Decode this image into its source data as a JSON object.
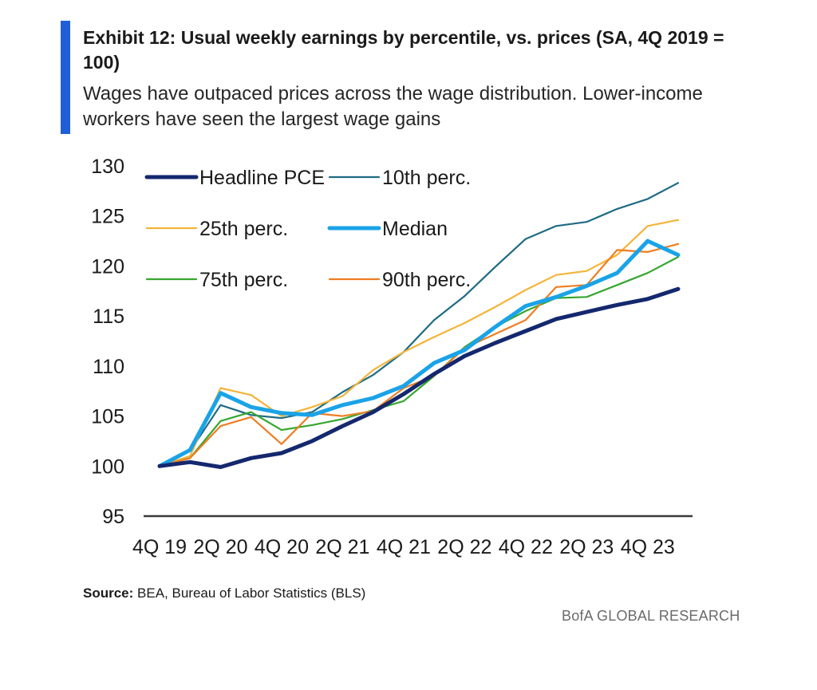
{
  "header": {
    "title": "Exhibit 12: Usual weekly earnings by percentile, vs. prices (SA, 4Q 2019 = 100)",
    "subtitle": "Wages have outpaced prices across the wage distribution. Lower-income workers have seen the largest wage gains"
  },
  "footer": {
    "source_label": "Source:",
    "source_text": "BEA, Bureau of Labor Statistics (BLS)",
    "brand": "BofA GLOBAL RESEARCH"
  },
  "colors": {
    "accent": "#1f5ed6"
  },
  "chart_data": {
    "type": "line",
    "ylim": [
      95,
      130
    ],
    "yticks": [
      95,
      100,
      105,
      110,
      115,
      120,
      125,
      130
    ],
    "x_tick_labels": [
      "4Q 19",
      "2Q 20",
      "4Q 20",
      "2Q 21",
      "4Q 21",
      "2Q 22",
      "4Q 22",
      "2Q 23",
      "4Q 23"
    ],
    "x": [
      "4Q 19",
      "1Q 20",
      "2Q 20",
      "3Q 20",
      "4Q 20",
      "1Q 21",
      "2Q 21",
      "3Q 21",
      "4Q 21",
      "1Q 22",
      "2Q 22",
      "3Q 22",
      "4Q 22",
      "1Q 23",
      "2Q 23",
      "3Q 23",
      "4Q 23",
      "1Q 24"
    ],
    "grid": false,
    "legend_position": "top-left",
    "series": [
      {
        "name": "Headline PCE",
        "color": "#14286e",
        "width": 5,
        "values": [
          100.0,
          100.4,
          99.9,
          100.8,
          101.3,
          102.5,
          104.0,
          105.4,
          107.2,
          109.2,
          111.0,
          112.3,
          113.5,
          114.7,
          115.4,
          116.1,
          116.7,
          117.7
        ]
      },
      {
        "name": "10th perc.",
        "color": "#1e6b84",
        "width": 2.2,
        "values": [
          100.0,
          101.5,
          106.1,
          105.1,
          104.8,
          105.4,
          107.4,
          109.1,
          111.4,
          114.6,
          117.0,
          119.9,
          122.7,
          124.0,
          124.4,
          125.7,
          126.7,
          128.3
        ]
      },
      {
        "name": "25th perc.",
        "color": "#f4b43a",
        "width": 2.2,
        "values": [
          100.0,
          101.0,
          107.8,
          107.1,
          105.0,
          105.9,
          107.0,
          109.6,
          111.4,
          112.9,
          114.3,
          115.9,
          117.6,
          119.1,
          119.5,
          121.1,
          124.0,
          124.6
        ]
      },
      {
        "name": "Median",
        "color": "#1aa3e8",
        "width": 5,
        "values": [
          100.0,
          101.6,
          107.3,
          105.9,
          105.3,
          105.1,
          106.1,
          106.8,
          108.0,
          110.3,
          111.6,
          113.9,
          116.0,
          116.9,
          118.0,
          119.3,
          122.5,
          121.1
        ]
      },
      {
        "name": "75th perc.",
        "color": "#36a72f",
        "width": 2.2,
        "values": [
          100.0,
          100.8,
          104.5,
          105.4,
          103.6,
          104.1,
          104.7,
          105.6,
          106.5,
          109.0,
          111.9,
          113.9,
          115.5,
          116.8,
          116.9,
          118.1,
          119.3,
          120.9
        ]
      },
      {
        "name": "90th perc.",
        "color": "#ef7d22",
        "width": 2.2,
        "values": [
          100.0,
          100.8,
          104.0,
          104.9,
          102.2,
          105.3,
          105.0,
          105.5,
          107.8,
          109.0,
          111.8,
          113.2,
          114.6,
          117.9,
          118.1,
          121.6,
          121.4,
          122.2
        ]
      }
    ]
  }
}
